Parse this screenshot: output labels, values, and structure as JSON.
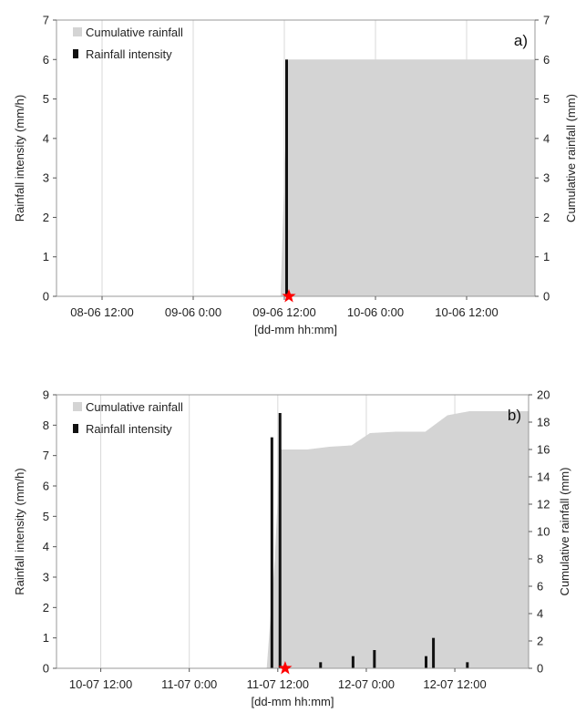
{
  "chart_data": [
    {
      "type": "bar",
      "panel_label": "a)",
      "xlabel": "[dd-mm hh:mm]",
      "ylabel": "Rainfall intensity (mm/h)",
      "y2label": "Cumulative rainfall (mm)",
      "x_range_hours": [
        -6,
        57
      ],
      "x_ticks": [
        {
          "hours": 0,
          "label": "08-06 12:00"
        },
        {
          "hours": 12,
          "label": "09-06 0:00"
        },
        {
          "hours": 24,
          "label": "09-06 12:00"
        },
        {
          "hours": 36,
          "label": "10-06 0:00"
        },
        {
          "hours": 48,
          "label": "10-06 12:00"
        }
      ],
      "ylim": [
        0,
        7
      ],
      "y_ticks": [
        0,
        1,
        2,
        3,
        4,
        5,
        6,
        7
      ],
      "y2lim": [
        0,
        7
      ],
      "y2_ticks": [
        0,
        1,
        2,
        3,
        4,
        5,
        6,
        7
      ],
      "legend": {
        "position": "top-left",
        "entries": [
          "Cumulative rainfall",
          "Rainfall intensity"
        ]
      },
      "series": [
        {
          "name": "Cumulative rainfall",
          "kind": "area",
          "axis": "right",
          "color": "#d4d4d4",
          "points": [
            [
              -6,
              0
            ],
            [
              23.5,
              0
            ],
            [
              24.5,
              6
            ],
            [
              57,
              6
            ]
          ]
        },
        {
          "name": "Rainfall intensity",
          "kind": "bar",
          "axis": "left",
          "color": "#111111",
          "points": [
            [
              24.3,
              6
            ]
          ]
        }
      ],
      "marker": {
        "symbol": "star",
        "color": "#ff0000",
        "x_hours": 24.6,
        "y": 0
      }
    },
    {
      "type": "bar",
      "panel_label": "b)",
      "xlabel": "[dd-mm hh:mm]",
      "ylabel": "Rainfall intensity (mm/h)",
      "y2label": "Cumulative rainfall (mm)",
      "x_range_hours": [
        -6,
        58
      ],
      "x_ticks": [
        {
          "hours": 0,
          "label": "10-07 12:00"
        },
        {
          "hours": 12,
          "label": "11-07 0:00"
        },
        {
          "hours": 24,
          "label": "11-07 12:00"
        },
        {
          "hours": 36,
          "label": "12-07 0:00"
        },
        {
          "hours": 48,
          "label": "12-07 12:00"
        }
      ],
      "ylim": [
        0,
        9
      ],
      "y_ticks": [
        0,
        1,
        2,
        3,
        4,
        5,
        6,
        7,
        8,
        9
      ],
      "y2lim": [
        0,
        20
      ],
      "y2_ticks": [
        0,
        2,
        4,
        6,
        8,
        10,
        12,
        14,
        16,
        18,
        20
      ],
      "legend": {
        "position": "top-left",
        "entries": [
          "Cumulative rainfall",
          "Rainfall intensity"
        ]
      },
      "series": [
        {
          "name": "Cumulative rainfall",
          "kind": "area",
          "axis": "right",
          "color": "#d4d4d4",
          "points": [
            [
              -6,
              0
            ],
            [
              22.5,
              0
            ],
            [
              23.6,
              8
            ],
            [
              24.3,
              16
            ],
            [
              28,
              16
            ],
            [
              31,
              16.2
            ],
            [
              34,
              16.3
            ],
            [
              36.5,
              17.2
            ],
            [
              40,
              17.3
            ],
            [
              44,
              17.3
            ],
            [
              47,
              18.5
            ],
            [
              50,
              18.8
            ],
            [
              58,
              18.8
            ]
          ]
        },
        {
          "name": "Rainfall intensity",
          "kind": "bar",
          "axis": "left",
          "color": "#111111",
          "points": [
            [
              23.2,
              7.6
            ],
            [
              24.3,
              8.4
            ],
            [
              29.8,
              0.2
            ],
            [
              34.2,
              0.4
            ],
            [
              37.1,
              0.6
            ],
            [
              44.1,
              0.4
            ],
            [
              45.1,
              1.0
            ],
            [
              49.7,
              0.2
            ]
          ]
        }
      ],
      "marker": {
        "symbol": "star",
        "color": "#ff0000",
        "x_hours": 25,
        "y": 0
      }
    }
  ]
}
